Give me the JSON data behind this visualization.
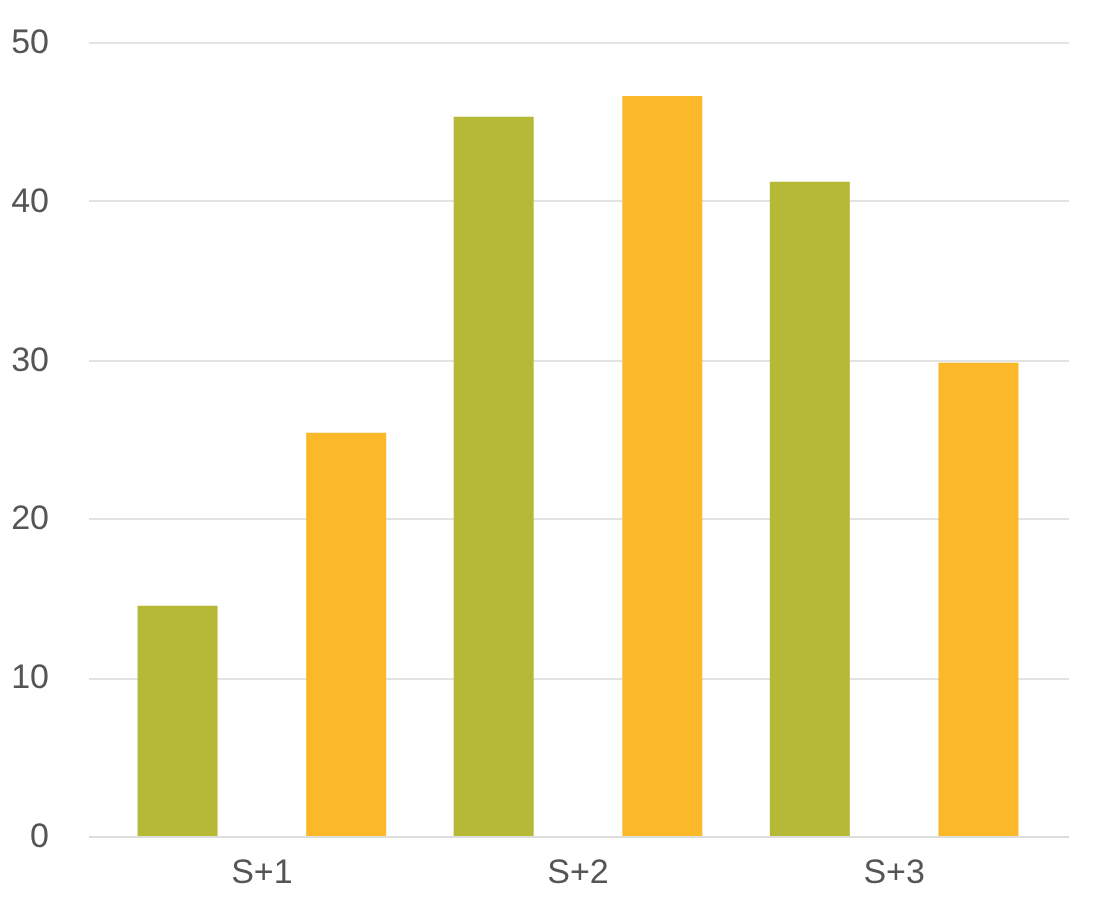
{
  "chart_data": {
    "type": "bar",
    "categories": [
      "S+1",
      "S+2",
      "S+3"
    ],
    "series": [
      {
        "color": "#b5b935",
        "values": [
          14.5,
          45.3,
          41.2
        ]
      },
      {
        "color": "#fbb829",
        "values": [
          25.4,
          46.6,
          29.8
        ]
      }
    ],
    "ylim": [
      0,
      50
    ],
    "yticks": [
      0,
      10,
      20,
      30,
      40,
      50
    ],
    "grid": "y"
  }
}
